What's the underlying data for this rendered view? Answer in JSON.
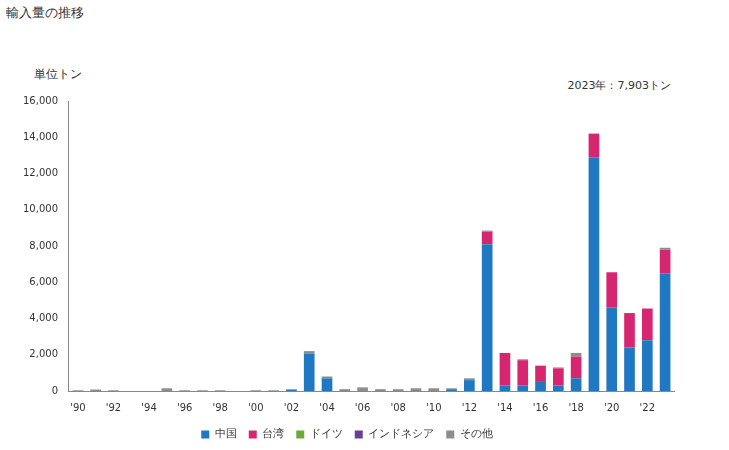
{
  "chart_data": {
    "type": "bar",
    "title": "輸入量の推移",
    "subtitle": "単位トン",
    "annotation": "2023年：7,903トン",
    "stacked": true,
    "grid": false,
    "legend": "bottom",
    "categories": [
      "'90",
      null,
      "'92",
      null,
      "'94",
      null,
      "'96",
      null,
      "'98",
      null,
      "'00",
      null,
      "'02",
      null,
      "'04",
      null,
      "'06",
      null,
      "'08",
      null,
      "'10",
      null,
      "'12",
      null,
      "'14",
      null,
      "'16",
      null,
      "'18",
      null,
      "'20",
      null,
      "'22",
      null
    ],
    "series": [
      {
        "name": "中国",
        "color": "#1f78c1",
        "values": [
          0,
          0,
          0,
          0,
          0,
          0,
          0,
          0,
          0,
          0,
          0,
          0,
          60,
          2050,
          700,
          0,
          0,
          0,
          0,
          0,
          0,
          100,
          600,
          8100,
          300,
          300,
          500,
          300,
          700,
          12900,
          4600,
          2400,
          2800,
          6500
        ]
      },
      {
        "name": "台湾",
        "color": "#d62670",
        "values": [
          0,
          0,
          0,
          0,
          0,
          0,
          0,
          0,
          0,
          0,
          0,
          0,
          0,
          0,
          0,
          0,
          0,
          0,
          0,
          0,
          0,
          0,
          0,
          700,
          1800,
          1400,
          900,
          950,
          1200,
          1300,
          1950,
          1900,
          1750,
          1300
        ]
      },
      {
        "name": "ドイツ",
        "color": "#70a83b",
        "values": [
          0,
          0,
          0,
          0,
          0,
          0,
          0,
          0,
          0,
          0,
          0,
          0,
          0,
          0,
          0,
          0,
          0,
          0,
          0,
          0,
          0,
          0,
          0,
          0,
          0,
          0,
          0,
          0,
          0,
          0,
          0,
          0,
          0,
          0
        ]
      },
      {
        "name": "インドネシア",
        "color": "#6a3d9a",
        "values": [
          0,
          0,
          0,
          0,
          0,
          0,
          0,
          0,
          0,
          0,
          0,
          0,
          0,
          0,
          0,
          0,
          0,
          0,
          0,
          0,
          0,
          0,
          0,
          0,
          0,
          0,
          0,
          0,
          0,
          0,
          0,
          0,
          0,
          0
        ]
      },
      {
        "name": "その他",
        "color": "#8c8c8c",
        "values": [
          40,
          80,
          40,
          0,
          0,
          150,
          40,
          40,
          40,
          0,
          40,
          40,
          40,
          150,
          100,
          100,
          200,
          100,
          100,
          150,
          150,
          50,
          100,
          50,
          0,
          50,
          0,
          50,
          200,
          0,
          0,
          0,
          0,
          103
        ]
      }
    ],
    "ylim": [
      0,
      16000
    ],
    "yticks": [
      0,
      {
        "value": 2000,
        "label": "2,000"
      },
      {
        "value": 4000,
        "label": "4,000"
      },
      {
        "value": 6000,
        "label": "6,000"
      },
      {
        "value": 8000,
        "label": "8,000"
      },
      {
        "value": 10000,
        "label": "10,000"
      },
      {
        "value": 12000,
        "label": "12,000"
      },
      {
        "value": 14000,
        "label": "14,000"
      },
      {
        "value": 16000,
        "label": "16,000"
      }
    ]
  }
}
